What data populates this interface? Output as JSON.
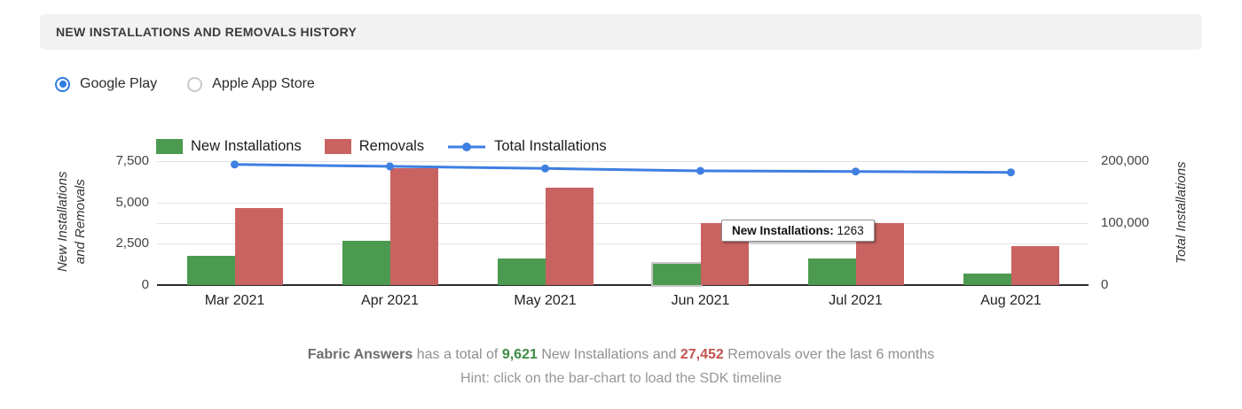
{
  "header": {
    "title": "NEW INSTALLATIONS AND REMOVALS HISTORY"
  },
  "radios": [
    {
      "label": "Google Play",
      "selected": true
    },
    {
      "label": "Apple App Store",
      "selected": false
    }
  ],
  "tooltip": {
    "label": "New Installations:",
    "value": "1263"
  },
  "chart_data": {
    "type": "bar",
    "categories": [
      "Mar 2021",
      "Apr 2021",
      "May 2021",
      "Jun 2021",
      "Jul 2021",
      "Aug 2021"
    ],
    "series": [
      {
        "name": "New Installations",
        "kind": "bar",
        "axis": "left",
        "color": "#4c9a4f",
        "values": [
          1750,
          2680,
          1620,
          1263,
          1590,
          718
        ]
      },
      {
        "name": "Removals",
        "kind": "bar",
        "axis": "left",
        "color": "#c96361",
        "values": [
          4650,
          7050,
          5920,
          3760,
          3730,
          2342
        ]
      },
      {
        "name": "Total Installations",
        "kind": "line",
        "axis": "right",
        "color": "#3e7fe1",
        "values": [
          194500,
          191500,
          188200,
          184300,
          183300,
          181800
        ]
      }
    ],
    "left_axis": {
      "title_lines": [
        "New Installations",
        "and Removals"
      ],
      "ticks": [
        "0",
        "2,500",
        "5,000",
        "7,500"
      ],
      "range": [
        0,
        7500
      ]
    },
    "right_axis": {
      "title_lines": [
        "Total Installations"
      ],
      "ticks": [
        "0",
        "100,000",
        "200,000"
      ],
      "range": [
        0,
        200000
      ]
    },
    "legend_position": "top",
    "grid": true,
    "hovered_bar": {
      "series_index": 0,
      "category_index": 3
    }
  },
  "footer": {
    "app_name": "Fabric Answers",
    "text_after_name": "has a total of",
    "installs_total": "9,621",
    "text_after_installs": "New Installations and",
    "removals_total": "27,452",
    "text_after_removals": "Removals over the last 6 months",
    "hint": "Hint: click on the bar-chart to load the SDK timeline"
  }
}
